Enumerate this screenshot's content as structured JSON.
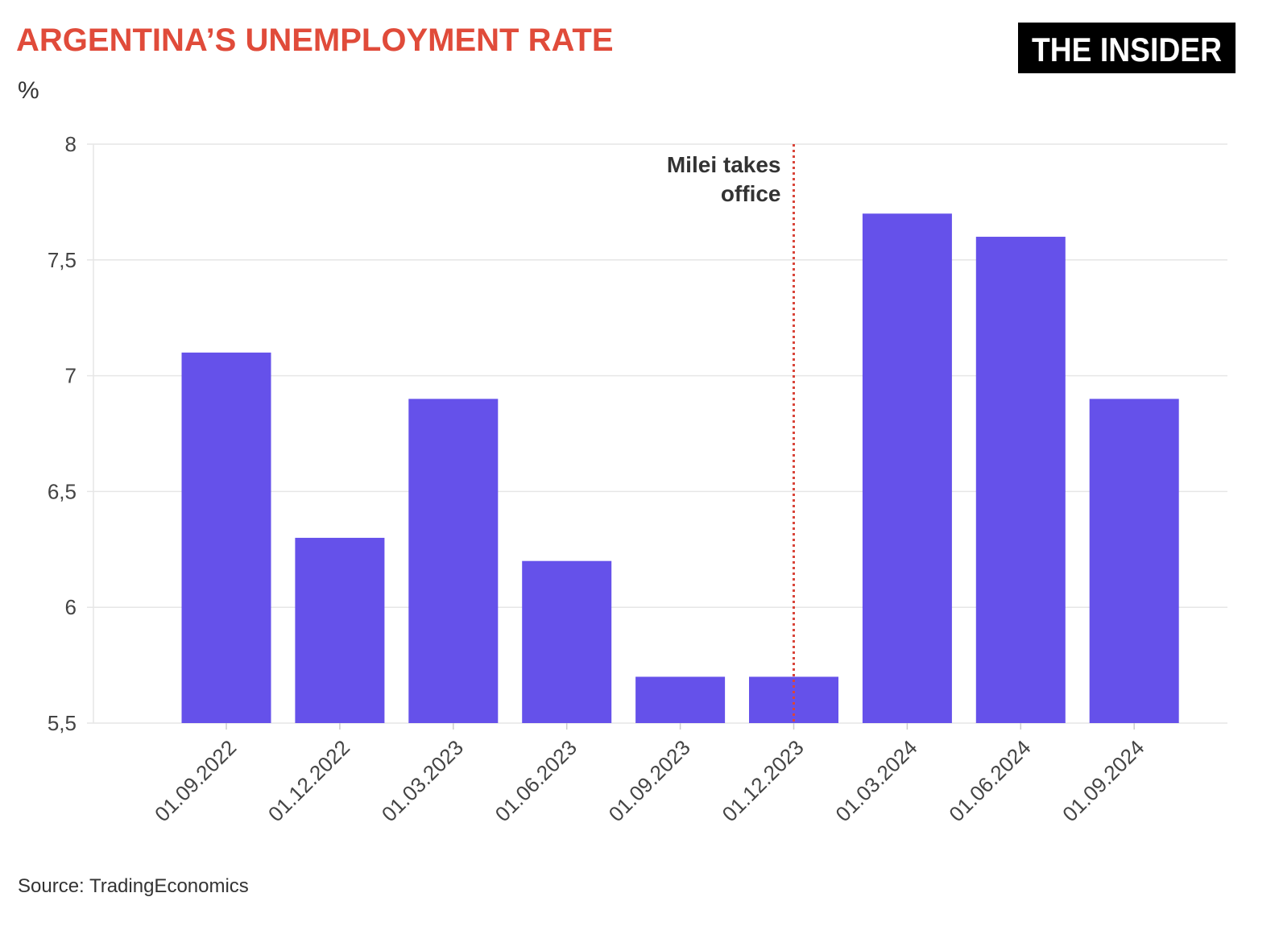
{
  "header": {
    "title": "ARGENTINA’S UNEMPLOYMENT RATE",
    "unit": "%",
    "logo_text": "THE INSIDER"
  },
  "footer": {
    "source": "Source: TradingEconomics"
  },
  "colors": {
    "title": "#e04b3a",
    "bar": "#6551ea",
    "annotation_line": "#d9453a",
    "grid": "#e6e6e6"
  },
  "chart_data": {
    "type": "bar",
    "title": "ARGENTINA’S UNEMPLOYMENT RATE",
    "ylabel": "%",
    "xlabel": "",
    "ylim": [
      5.5,
      8
    ],
    "yticks": [
      "5,5",
      "6",
      "6,5",
      "7",
      "7,5",
      "8"
    ],
    "ytick_values": [
      5.5,
      6,
      6.5,
      7,
      7.5,
      8
    ],
    "grid": true,
    "categories": [
      "01.09.2022",
      "01.12.2022",
      "01.03.2023",
      "01.06.2023",
      "01.09.2023",
      "01.12.2023",
      "01.03.2024",
      "01.06.2024",
      "01.09.2024"
    ],
    "values": [
      7.1,
      6.3,
      6.9,
      6.2,
      5.7,
      5.7,
      7.7,
      7.6,
      6.9
    ],
    "annotation": {
      "at_category": "01.12.2023",
      "lines": [
        "Milei takes",
        "office"
      ]
    }
  }
}
